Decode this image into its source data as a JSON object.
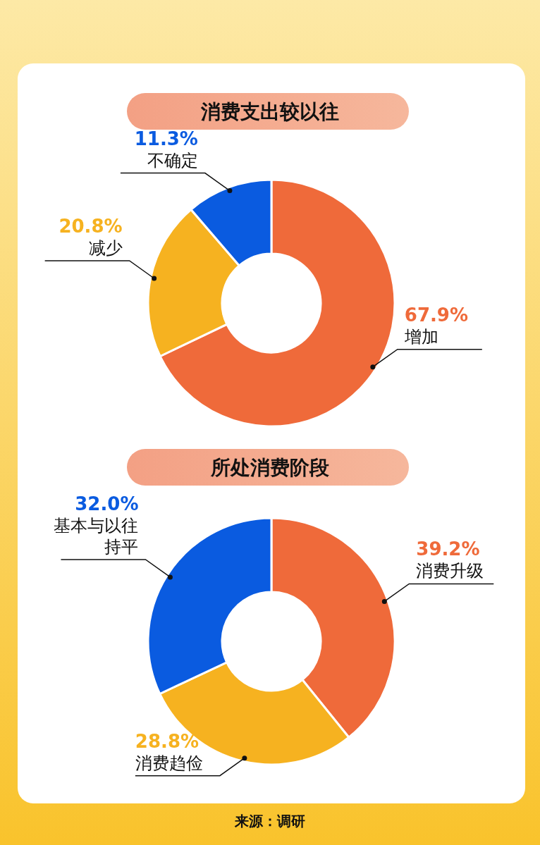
{
  "chart_data": [
    {
      "type": "donut",
      "title": "消费支出较以往",
      "categories": [
        "增加",
        "减少",
        "不确定"
      ],
      "values": [
        67.9,
        20.8,
        11.3
      ],
      "colors": [
        "#ef6a3a",
        "#f6b220",
        "#0a5be0"
      ],
      "value_labels": [
        "67.9%",
        "20.8%",
        "11.3%"
      ]
    },
    {
      "type": "donut",
      "title": "所处消费阶段",
      "categories": [
        "消费升级",
        "消费趋俭",
        "基本与以往持平"
      ],
      "values": [
        39.2,
        28.8,
        32.0
      ],
      "colors": [
        "#ef6a3a",
        "#f6b220",
        "#0a5be0"
      ],
      "value_labels": [
        "39.2%",
        "28.8%",
        "32.0%"
      ],
      "annotations": [
        "来源：调研"
      ]
    }
  ]
}
